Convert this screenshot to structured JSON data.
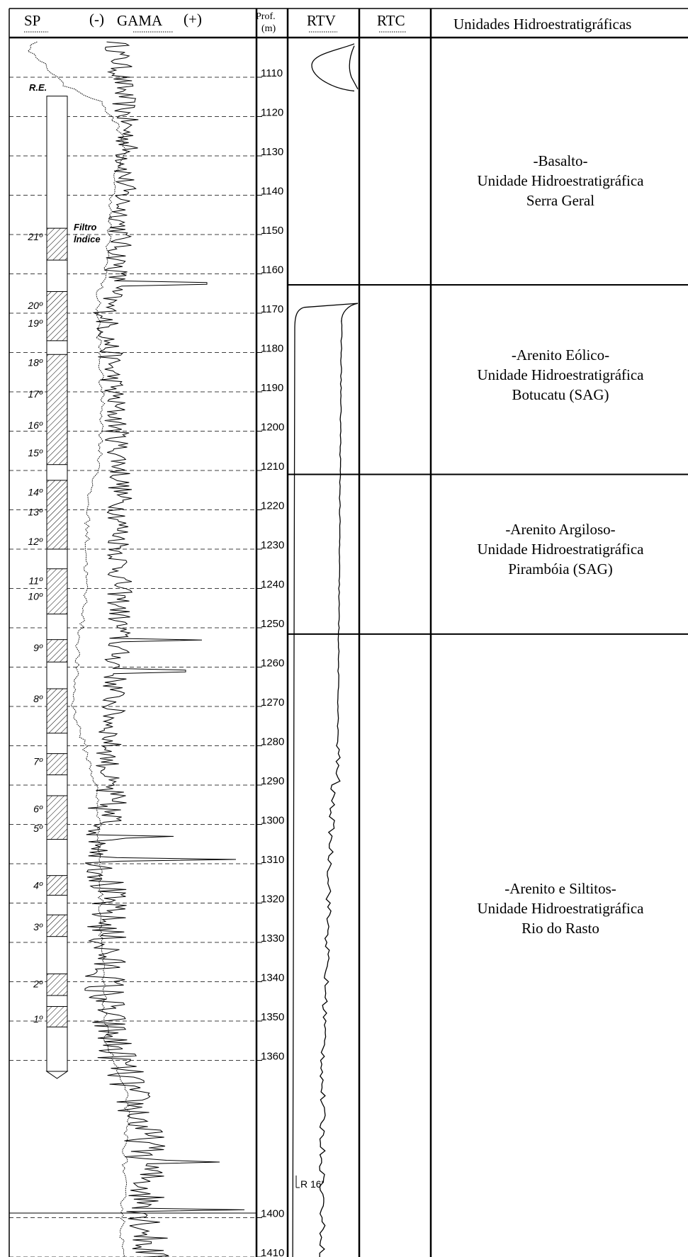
{
  "header": {
    "sp": "SP",
    "gama_minus": "(-)",
    "gama": "GAMA",
    "gama_plus": "(+)",
    "prof_line1": "Prof.",
    "prof_line2": "(m)",
    "rtv": "RTV",
    "rtc": "RTC",
    "units": "Unidades Hidroestratigráficas"
  },
  "depth_ticks": [
    1110,
    1120,
    1130,
    1140,
    1150,
    1160,
    1170,
    1180,
    1190,
    1200,
    1210,
    1220,
    1230,
    1240,
    1250,
    1260,
    1270,
    1280,
    1290,
    1300,
    1310,
    1320,
    1330,
    1340,
    1350,
    1360,
    1400,
    1410
  ],
  "well": {
    "top_label": "R.E.",
    "annotation_line1": "Filtro",
    "annotation_line2": "Índice",
    "filters": [
      {
        "label": "21º",
        "top": 1148.4,
        "bottom": 1156.5,
        "label_depth": 1150.5
      },
      {
        "label": "20º",
        "top": 1164.5,
        "bottom": 1177.0,
        "label_depth": 1168.0
      },
      {
        "label": "19º",
        "top": 1164.5,
        "bottom": 1177.0,
        "label_depth": 1172.5
      },
      {
        "label": "18º",
        "top": 1180.5,
        "bottom": 1208.5,
        "label_depth": 1182.5
      },
      {
        "label": "17º",
        "top": 1180.5,
        "bottom": 1208.5,
        "label_depth": 1190.5
      },
      {
        "label": "16º",
        "top": 1180.5,
        "bottom": 1208.5,
        "label_depth": 1198.5
      },
      {
        "label": "15º",
        "top": 1180.5,
        "bottom": 1208.5,
        "label_depth": 1205.5
      },
      {
        "label": "14º",
        "top": 1212.5,
        "bottom": 1230.0,
        "label_depth": 1215.5
      },
      {
        "label": "13º",
        "top": 1212.5,
        "bottom": 1230.0,
        "label_depth": 1220.5
      },
      {
        "label": "12º",
        "top": 1212.5,
        "bottom": 1230.0,
        "label_depth": 1228.0
      },
      {
        "label": "11º",
        "top": 1235.0,
        "bottom": 1246.5,
        "label_depth": 1238.0
      },
      {
        "label": "10º",
        "top": 1235.0,
        "bottom": 1246.5,
        "label_depth": 1242.0
      },
      {
        "label": "9º",
        "top": 1253.0,
        "bottom": 1258.7,
        "label_depth": 1255.0
      },
      {
        "label": "8º",
        "top": 1265.5,
        "bottom": 1276.8,
        "label_depth": 1268.0
      },
      {
        "label": "7º",
        "top": 1282.0,
        "bottom": 1287.4,
        "label_depth": 1284.0
      },
      {
        "label": "6º",
        "top": 1292.7,
        "bottom": 1303.8,
        "label_depth": 1296.0
      },
      {
        "label": "5º",
        "top": 1292.7,
        "bottom": 1303.8,
        "label_depth": 1301.0
      },
      {
        "label": "4º",
        "top": 1313.0,
        "bottom": 1318.0,
        "label_depth": 1315.5
      },
      {
        "label": "3º",
        "top": 1323.0,
        "bottom": 1328.5,
        "label_depth": 1326.0
      },
      {
        "label": "2º",
        "top": 1338.0,
        "bottom": 1343.5,
        "label_depth": 1340.5
      },
      {
        "label": "1º",
        "top": 1346.3,
        "bottom": 1351.5,
        "label_depth": 1349.5
      }
    ]
  },
  "rtv_annotation": "R 16'",
  "units": [
    {
      "lines": [
        "-Basalto-",
        "Unidade Hidroestratigráfica",
        "Serra Geral"
      ],
      "top": 1101.5,
      "bottom": 1162.8
    },
    {
      "lines": [
        "-Arenito Eólico-",
        "Unidade Hidroestratigráfica",
        "Botucatu (SAG)"
      ],
      "top": 1162.8,
      "bottom": 1211.0
    },
    {
      "lines": [
        "-Arenito Argiloso-",
        "Unidade Hidroestratigráfica",
        "Pirambóia (SAG)"
      ],
      "top": 1211.0,
      "bottom": 1251.6
    },
    {
      "lines": [
        "-Arenito e Siltitos-",
        "Unidade Hidroestratigráfica",
        "Rio do Rasto"
      ],
      "top": 1251.6,
      "bottom": 1420
    }
  ]
}
